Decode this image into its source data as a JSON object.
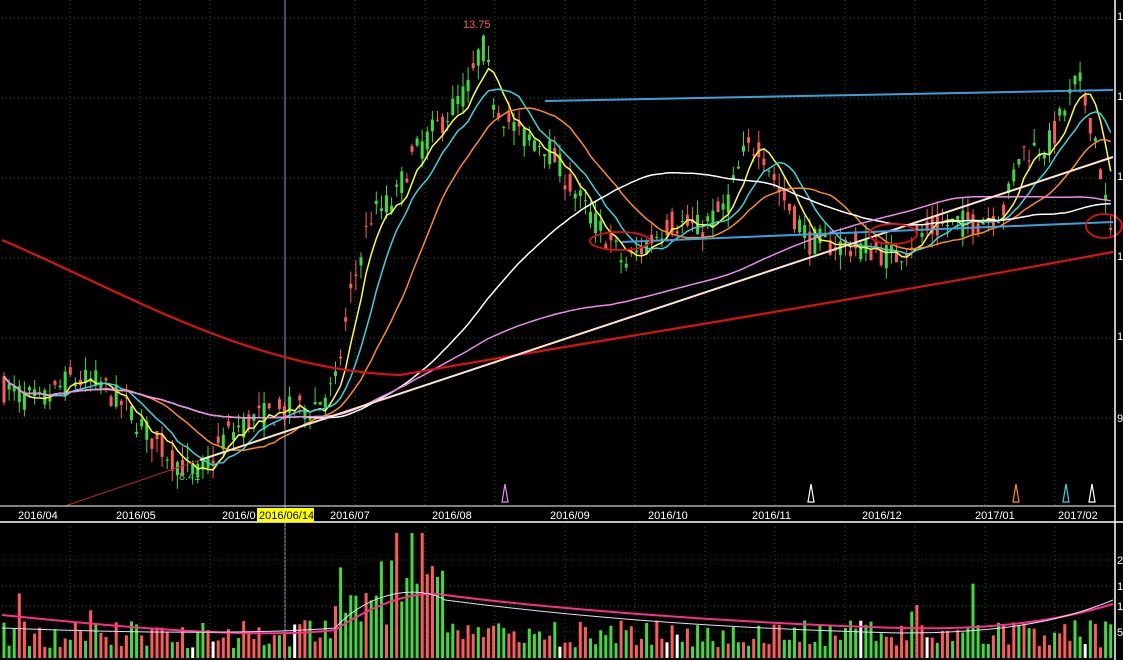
{
  "colors": {
    "background": "#000000",
    "grid": "#1e5a1e",
    "frame": "#ffffff",
    "up_candle": "#ff5a5a",
    "down_candle": "#3ddc3d",
    "ma_yellow": "#ffff33",
    "ma_cyan": "#33d6e0",
    "ma_orange": "#ff8c1a",
    "ma_white": "#ffffff",
    "ma_violet": "#ee88ee",
    "ma_red": "#dd1111",
    "trendline": "#ffe4d0",
    "channel": "#3aa0e0",
    "circle": "#e01010",
    "cursor_label_bg": "#ffff00"
  },
  "chart_data": [
    {
      "type": "candlestick",
      "x_ticks": [
        "2016/04",
        "2016/05",
        "2016/0",
        "2016/07",
        "2016/08",
        "2016/09",
        "2016/10",
        "2016/11",
        "2016/12",
        "2017/01",
        "2017/02"
      ],
      "cursor_label": "2016/06/14",
      "annotations": {
        "high": "13.75",
        "low": "8.41"
      },
      "y_axis_labels": [
        "1",
        "1",
        "1",
        "1",
        "1",
        "9"
      ],
      "key_prices": [
        {
          "date": "2016/04",
          "close": 9.5
        },
        {
          "date": "2016/05",
          "close": 9.1
        },
        {
          "date": "2016/05 late",
          "close": 8.41
        },
        {
          "date": "2016/06",
          "close": 9.2
        },
        {
          "date": "2016/07",
          "close": 9.6
        },
        {
          "date": "2016/07 mid",
          "close": 11.6
        },
        {
          "date": "2016/08",
          "close": 12.8
        },
        {
          "date": "2016/08 peak",
          "close": 13.75
        },
        {
          "date": "2016/09",
          "close": 12.3
        },
        {
          "date": "2016/09 low",
          "close": 11.0
        },
        {
          "date": "2016/10",
          "close": 11.6
        },
        {
          "date": "2016/11",
          "close": 12.6
        },
        {
          "date": "2016/12",
          "close": 11.2
        },
        {
          "date": "2017/01",
          "close": 12.2
        },
        {
          "date": "2017/02",
          "close": 13.0
        }
      ],
      "moving_averages": [
        "yellow",
        "cyan",
        "orange",
        "white",
        "violet",
        "red"
      ],
      "markers": [
        "violet",
        "white",
        "orange",
        "cyan",
        "white"
      ]
    },
    {
      "type": "bar",
      "name": "volume",
      "y_axis_labels": [
        "2",
        "1",
        "1",
        "5"
      ]
    }
  ]
}
